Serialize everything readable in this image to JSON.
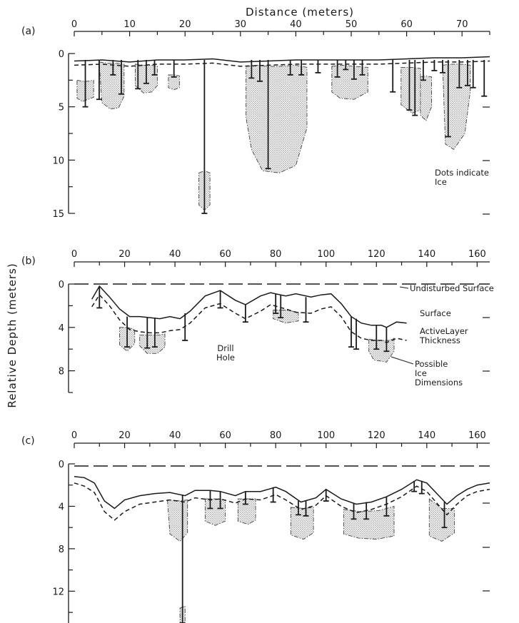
{
  "figure": {
    "x_title": "Distance (meters)",
    "y_title": "Relative Depth (meters)"
  },
  "chart_data": [
    {
      "panel": "(a)",
      "type": "line",
      "xlim": [
        0,
        75
      ],
      "x_ticks": [
        0,
        10,
        20,
        30,
        40,
        50,
        60,
        70
      ],
      "ylim": [
        15,
        0
      ],
      "y_ticks": [
        0,
        5,
        10,
        15
      ],
      "annotations": [
        "Dots indicate Ice"
      ],
      "series": [
        {
          "x": [
            0,
            5,
            10,
            15,
            20,
            25,
            30,
            35,
            40,
            45,
            50,
            55,
            60,
            65,
            70,
            75
          ],
          "values": [
            0.7,
            0.6,
            0.8,
            0.6,
            0.6,
            0.5,
            0.8,
            0.7,
            0.6,
            0.6,
            0.6,
            0.6,
            0.5,
            0.4,
            0.4,
            0.3
          ]
        },
        {
          "x": [
            0,
            5,
            10,
            15,
            20,
            25,
            30,
            35,
            40,
            45,
            50,
            55,
            60,
            65,
            70,
            75
          ],
          "values": [
            1.1,
            1.0,
            1.2,
            1.0,
            1.0,
            0.9,
            1.2,
            1.1,
            1.0,
            1.0,
            1.0,
            1.0,
            0.9,
            0.8,
            0.8,
            0.7
          ]
        }
      ],
      "drill_holes": [
        {
          "x": 2,
          "depth": 5
        },
        {
          "x": 4.5,
          "depth": 4.3
        },
        {
          "x": 7,
          "depth": 2
        },
        {
          "x": 8.5,
          "depth": 3.8
        },
        {
          "x": 11.5,
          "depth": 3.3
        },
        {
          "x": 13,
          "depth": 2.8
        },
        {
          "x": 14.5,
          "depth": 2
        },
        {
          "x": 18,
          "depth": 2.2
        },
        {
          "x": 23.5,
          "depth": 15
        },
        {
          "x": 32,
          "depth": 2.3
        },
        {
          "x": 33.5,
          "depth": 2.6
        },
        {
          "x": 35,
          "depth": 10.8
        },
        {
          "x": 39,
          "depth": 2
        },
        {
          "x": 41,
          "depth": 2
        },
        {
          "x": 44,
          "depth": 1.8
        },
        {
          "x": 47.5,
          "depth": 2.2
        },
        {
          "x": 49,
          "depth": 1.5
        },
        {
          "x": 50.5,
          "depth": 2.4
        },
        {
          "x": 52,
          "depth": 2
        },
        {
          "x": 57.5,
          "depth": 3.6
        },
        {
          "x": 60.5,
          "depth": 5.3
        },
        {
          "x": 61.5,
          "depth": 5.8
        },
        {
          "x": 63,
          "depth": 2.5
        },
        {
          "x": 65,
          "depth": 1.6
        },
        {
          "x": 66.5,
          "depth": 1.8
        },
        {
          "x": 67.5,
          "depth": 7.8
        },
        {
          "x": 69.5,
          "depth": 3.2
        },
        {
          "x": 71,
          "depth": 3
        },
        {
          "x": 72,
          "depth": 3.2
        },
        {
          "x": 74,
          "depth": 4
        }
      ],
      "ice": [
        {
          "x": [
            0.5,
            1.5,
            2.5,
            3.5,
            3.5,
            2.5,
            1.5,
            0.5
          ],
          "y": [
            2.5,
            2.6,
            2.6,
            2.5,
            4.1,
            4.3,
            4.5,
            4.2
          ]
        },
        {
          "x": [
            4.5,
            6,
            7.5,
            9,
            9,
            8,
            6.5,
            5
          ],
          "y": [
            0.8,
            0.9,
            0.9,
            1.0,
            4.0,
            5.1,
            5.2,
            4.6
          ]
        },
        {
          "x": [
            11,
            12.5,
            14,
            15,
            15,
            14,
            12.5,
            11
          ],
          "y": [
            1.0,
            1.1,
            1.1,
            1.2,
            3.0,
            3.6,
            3.7,
            3.0
          ]
        },
        {
          "x": [
            17,
            18,
            19,
            19,
            18,
            17
          ],
          "y": [
            2.0,
            2.0,
            2.1,
            3.2,
            3.4,
            3.2
          ]
        },
        {
          "x": [
            22.5,
            23.5,
            24.5,
            24.5,
            23.5,
            22.5
          ],
          "y": [
            11.2,
            11.0,
            11.2,
            14.2,
            14.7,
            14.2
          ]
        },
        {
          "x": [
            31,
            33,
            35,
            37,
            40,
            42,
            42,
            40,
            37,
            34,
            32,
            31
          ],
          "y": [
            1.2,
            1.1,
            1.2,
            1.2,
            1.1,
            1.3,
            7,
            10.5,
            11.2,
            11,
            9,
            6
          ]
        },
        {
          "x": [
            46.5,
            48.5,
            50.5,
            53,
            53,
            50.5,
            48,
            46.5
          ],
          "y": [
            1.2,
            1.1,
            1.2,
            1.3,
            3.6,
            4.3,
            4.2,
            3.6
          ]
        },
        {
          "x": [
            59,
            61,
            62.5,
            62.5,
            61,
            59
          ],
          "y": [
            1.3,
            1.3,
            1.4,
            5.3,
            5.6,
            4.8
          ]
        },
        {
          "x": [
            62.5,
            63.5,
            64.5,
            64.5,
            63.5,
            62.5
          ],
          "y": [
            2.2,
            2.1,
            2.2,
            5.0,
            6.3,
            5.8
          ]
        },
        {
          "x": [
            66.5,
            68,
            70,
            71.5,
            71.5,
            70.5,
            68.5,
            67
          ],
          "y": [
            1.1,
            1.0,
            1.0,
            1.1,
            3.5,
            7.5,
            9.0,
            8.5
          ]
        }
      ]
    },
    {
      "panel": "(b)",
      "type": "line",
      "xlim": [
        0,
        165
      ],
      "x_ticks": [
        0,
        20,
        40,
        60,
        80,
        100,
        120,
        140,
        160
      ],
      "ylim": [
        10,
        0
      ],
      "y_ticks": [
        0,
        4,
        8
      ],
      "annotations": [
        "Undisturbed Surface",
        "Surface",
        "ActiveLayer Thickness",
        "Possible Ice Dimensions",
        "Drill Hole"
      ],
      "series": [
        {
          "name": "Undisturbed Surface",
          "x": [
            0,
            165
          ],
          "values": [
            0,
            0
          ]
        },
        {
          "name": "Surface",
          "x": [
            7,
            10,
            14,
            18,
            22,
            26,
            30,
            34,
            38,
            42,
            46,
            52,
            58,
            64,
            68,
            74,
            78,
            84,
            88,
            94,
            98,
            102,
            106,
            110,
            114,
            118,
            122,
            124,
            128,
            132
          ],
          "values": [
            1.4,
            0.2,
            1.2,
            2.3,
            3.0,
            3.0,
            3.1,
            3.2,
            3.0,
            3.2,
            2.5,
            1.1,
            0.6,
            1.5,
            1.9,
            1.1,
            0.8,
            1.1,
            0.9,
            1.2,
            1.0,
            0.9,
            1.8,
            3.0,
            3.6,
            3.8,
            3.8,
            4.0,
            3.5,
            3.6
          ]
        },
        {
          "name": "ActiveLayer Thickness",
          "x": [
            7,
            10,
            14,
            18,
            22,
            26,
            30,
            34,
            38,
            42,
            46,
            52,
            58,
            64,
            68,
            74,
            78,
            84,
            88,
            94,
            98,
            102,
            106,
            110,
            114,
            118,
            122,
            124,
            128,
            132
          ],
          "values": [
            2.1,
            1.0,
            2.0,
            3.3,
            4.2,
            4.4,
            4.5,
            4.5,
            4.3,
            4.2,
            3.6,
            2.2,
            1.8,
            2.7,
            3.2,
            2.5,
            1.9,
            2.3,
            2.6,
            2.7,
            2.3,
            2.1,
            3.0,
            4.4,
            5.0,
            5.2,
            5.2,
            5.4,
            5.0,
            5.2
          ]
        }
      ],
      "drill_holes": [
        {
          "x": 10,
          "top": 0.2,
          "bottom": 2.2
        },
        {
          "x": 21,
          "top": 3.0,
          "bottom": 5.8
        },
        {
          "x": 29,
          "top": 3.1,
          "bottom": 5.9
        },
        {
          "x": 32,
          "top": 3.1,
          "bottom": 5.8
        },
        {
          "x": 44,
          "top": 2.7,
          "bottom": 5.2
        },
        {
          "x": 58,
          "top": 0.6,
          "bottom": 2.2
        },
        {
          "x": 68,
          "top": 1.9,
          "bottom": 3.5
        },
        {
          "x": 80,
          "top": 0.9,
          "bottom": 2.7
        },
        {
          "x": 82,
          "top": 1.0,
          "bottom": 3.1
        },
        {
          "x": 92,
          "top": 1.2,
          "bottom": 3.5
        },
        {
          "x": 110,
          "top": 3.0,
          "bottom": 5.8
        },
        {
          "x": 112,
          "top": 3.2,
          "bottom": 6.0
        },
        {
          "x": 120,
          "top": 3.8,
          "bottom": 6.0
        },
        {
          "x": 124,
          "top": 4.0,
          "bottom": 6.2
        }
      ],
      "ice": [
        {
          "x": [
            18,
            21,
            24,
            24,
            21,
            18
          ],
          "y": [
            4.0,
            4.0,
            4.2,
            5.5,
            6.2,
            5.6
          ]
        },
        {
          "x": [
            26,
            30,
            34,
            36,
            36,
            33,
            29,
            26
          ],
          "y": [
            4.7,
            4.7,
            4.7,
            4.6,
            5.8,
            6.4,
            6.4,
            5.7
          ]
        },
        {
          "x": [
            79,
            84,
            89,
            89,
            84,
            79
          ],
          "y": [
            2.4,
            2.4,
            2.6,
            3.4,
            3.6,
            3.2
          ]
        },
        {
          "x": [
            117,
            121,
            125,
            127,
            127,
            124,
            119,
            117
          ],
          "y": [
            5.1,
            5.2,
            5.2,
            5.0,
            6.2,
            7.2,
            7.0,
            6.2
          ]
        }
      ]
    },
    {
      "panel": "(c)",
      "type": "line",
      "xlim": [
        0,
        165
      ],
      "x_ticks": [
        0,
        20,
        40,
        60,
        80,
        100,
        120,
        140,
        160
      ],
      "ylim": [
        15,
        0
      ],
      "y_ticks": [
        0,
        4,
        8,
        12
      ],
      "annotations": [],
      "series": [
        {
          "x": [
            0,
            165
          ],
          "values": [
            0.2,
            0.2
          ]
        },
        {
          "x": [
            0,
            4,
            8,
            12,
            16,
            20,
            26,
            32,
            38,
            44,
            48,
            54,
            58,
            64,
            68,
            74,
            80,
            84,
            90,
            96,
            100,
            106,
            112,
            118,
            124,
            130,
            136,
            140,
            144,
            148,
            152,
            156,
            160,
            165
          ],
          "values": [
            1.2,
            1.3,
            1.8,
            3.5,
            4.2,
            3.4,
            3.0,
            2.8,
            2.7,
            3.0,
            2.5,
            2.5,
            2.6,
            3.0,
            2.6,
            2.6,
            2.2,
            2.6,
            3.6,
            3.2,
            2.4,
            3.3,
            3.8,
            3.6,
            3.1,
            2.4,
            1.5,
            1.8,
            2.8,
            3.8,
            3.0,
            2.4,
            2.0,
            1.8
          ]
        },
        {
          "x": [
            0,
            4,
            8,
            12,
            16,
            20,
            26,
            32,
            38,
            44,
            48,
            54,
            58,
            64,
            68,
            74,
            80,
            84,
            90,
            96,
            100,
            106,
            112,
            118,
            124,
            130,
            136,
            140,
            144,
            148,
            152,
            156,
            160,
            165
          ],
          "values": [
            1.8,
            2.1,
            2.7,
            4.5,
            5.3,
            4.5,
            3.8,
            3.6,
            3.4,
            3.6,
            3.2,
            3.4,
            3.3,
            3.7,
            3.3,
            3.4,
            2.9,
            3.4,
            4.3,
            3.9,
            3.0,
            4.0,
            4.6,
            4.3,
            3.8,
            3.1,
            2.1,
            2.6,
            3.7,
            4.8,
            3.8,
            3.0,
            2.6,
            2.4
          ]
        }
      ],
      "drill_holes": [
        {
          "x": 43,
          "top": 2.9,
          "bottom": 15
        },
        {
          "x": 54,
          "top": 2.5,
          "bottom": 4.2
        },
        {
          "x": 58,
          "top": 2.6,
          "bottom": 4.2
        },
        {
          "x": 68,
          "top": 2.6,
          "bottom": 3.8
        },
        {
          "x": 79,
          "top": 2.2,
          "bottom": 3.6
        },
        {
          "x": 89,
          "top": 3.5,
          "bottom": 4.8
        },
        {
          "x": 92,
          "top": 3.5,
          "bottom": 4.9
        },
        {
          "x": 100,
          "top": 2.4,
          "bottom": 3.5
        },
        {
          "x": 111,
          "top": 3.7,
          "bottom": 5.2
        },
        {
          "x": 116,
          "top": 3.6,
          "bottom": 5.2
        },
        {
          "x": 124,
          "top": 3.1,
          "bottom": 4.9
        },
        {
          "x": 135,
          "top": 1.6,
          "bottom": 2.6
        },
        {
          "x": 138,
          "top": 1.6,
          "bottom": 2.8
        },
        {
          "x": 147,
          "top": 3.6,
          "bottom": 6.0
        }
      ],
      "ice": [
        {
          "x": [
            37,
            42,
            45,
            45,
            42,
            38
          ],
          "y": [
            3.4,
            3.5,
            3.4,
            6.5,
            7.3,
            6.6
          ]
        },
        {
          "x": [
            42,
            44,
            44,
            42
          ],
          "y": [
            13.6,
            13.4,
            15,
            15
          ]
        },
        {
          "x": [
            52,
            56,
            60,
            60,
            56,
            52
          ],
          "y": [
            3.3,
            3.3,
            3.4,
            5.4,
            5.8,
            5.4
          ]
        },
        {
          "x": [
            65,
            69,
            72,
            72,
            69,
            65
          ],
          "y": [
            3.3,
            3.3,
            3.3,
            5.3,
            5.7,
            5.4
          ]
        },
        {
          "x": [
            86,
            91,
            95,
            95,
            91,
            86
          ],
          "y": [
            4.1,
            4.2,
            4.1,
            6.5,
            7.1,
            6.7
          ]
        },
        {
          "x": [
            107,
            114,
            121,
            127,
            127,
            120,
            113,
            107
          ],
          "y": [
            4.3,
            4.5,
            4.4,
            4.0,
            6.8,
            7.1,
            7.0,
            6.6
          ]
        },
        {
          "x": [
            141,
            146,
            151,
            151,
            146,
            141
          ],
          "y": [
            3.3,
            4.2,
            4.2,
            6.5,
            7.3,
            6.8
          ]
        }
      ]
    }
  ]
}
